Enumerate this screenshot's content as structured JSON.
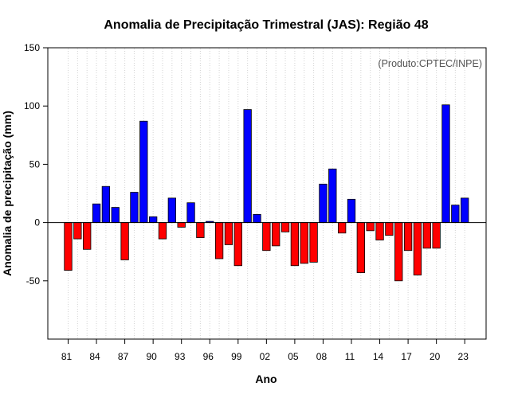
{
  "chart_data": {
    "type": "bar",
    "title": "Anomalia de Precipitação Trimestral (JAS): Região 48",
    "xlabel": "Ano",
    "ylabel": "Anomalia de precipitação (mm)",
    "credit": "(Produto:CPTEC/INPE)",
    "ylim": [
      -100,
      150
    ],
    "yticks": [
      -50,
      0,
      50,
      100,
      150
    ],
    "x_tick_labels": [
      {
        "index": 0,
        "label": "81"
      },
      {
        "index": 3,
        "label": "84"
      },
      {
        "index": 6,
        "label": "87"
      },
      {
        "index": 9,
        "label": "90"
      },
      {
        "index": 12,
        "label": "93"
      },
      {
        "index": 15,
        "label": "96"
      },
      {
        "index": 18,
        "label": "99"
      },
      {
        "index": 21,
        "label": "02"
      },
      {
        "index": 24,
        "label": "05"
      },
      {
        "index": 27,
        "label": "08"
      },
      {
        "index": 30,
        "label": "11"
      },
      {
        "index": 33,
        "label": "14"
      },
      {
        "index": 36,
        "label": "17"
      },
      {
        "index": 39,
        "label": "20"
      },
      {
        "index": 42,
        "label": "23"
      }
    ],
    "categories": [
      "1981",
      "1982",
      "1983",
      "1984",
      "1985",
      "1986",
      "1987",
      "1988",
      "1989",
      "1990",
      "1991",
      "1992",
      "1993",
      "1994",
      "1995",
      "1996",
      "1997",
      "1998",
      "1999",
      "2000",
      "2001",
      "2002",
      "2003",
      "2004",
      "2005",
      "2006",
      "2007",
      "2008",
      "2009",
      "2010",
      "2011",
      "2012",
      "2013",
      "2014",
      "2015",
      "2016",
      "2017",
      "2018",
      "2019",
      "2020",
      "2021",
      "2022",
      "2023"
    ],
    "values": [
      -41,
      -14,
      -23,
      16,
      31,
      13,
      -32,
      26,
      87,
      5,
      -14,
      21,
      -4,
      17,
      -13,
      1,
      -31,
      -19,
      -37,
      97,
      7,
      -24,
      -20,
      -8,
      -37,
      -35,
      -34,
      33,
      46,
      -9,
      20,
      -43,
      -7,
      -15,
      -11,
      -50,
      -24,
      -45,
      -22,
      -22,
      101,
      15,
      21
    ],
    "colors": {
      "positive": "#0000ff",
      "negative": "#ff0000",
      "grid": "#d3d3d3",
      "zero_line": "#000000"
    }
  }
}
